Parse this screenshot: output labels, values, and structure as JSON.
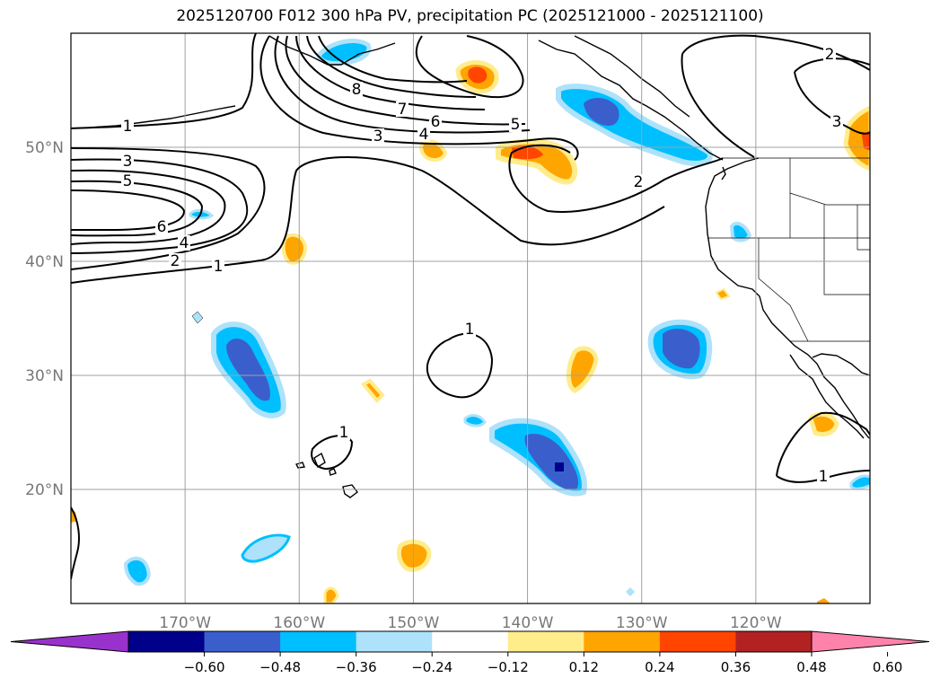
{
  "title": "2025120700 F012 300 hPa PV, precipitation PC (2025121000 - 2025121100)",
  "map": {
    "lon_range": [
      -180,
      -110
    ],
    "lat_range": [
      10,
      60
    ],
    "lon_ticks": [
      {
        "lon": -170,
        "label": "170°W"
      },
      {
        "lon": -160,
        "label": "160°W"
      },
      {
        "lon": -150,
        "label": "150°W"
      },
      {
        "lon": -140,
        "label": "140°W"
      },
      {
        "lon": -130,
        "label": "130°W"
      },
      {
        "lon": -120,
        "label": "120°W"
      }
    ],
    "lat_ticks": [
      {
        "lat": 20,
        "label": "20°N"
      },
      {
        "lat": 30,
        "label": "30°N"
      },
      {
        "lat": 40,
        "label": "40°N"
      },
      {
        "lat": 50,
        "label": "50°N"
      }
    ],
    "gridlines": true,
    "contour_labels": [
      "1",
      "1",
      "1",
      "1",
      "1",
      "2",
      "2",
      "2",
      "3",
      "3",
      "3",
      "4",
      "4",
      "5",
      "5",
      "6",
      "6",
      "7",
      "8"
    ]
  },
  "colorbar": {
    "colors": [
      "#9932CC",
      "#00008B",
      "#3A5FCD",
      "#00BFFF",
      "#ADE2FA",
      "#FFFFFF",
      "#FFEC8B",
      "#FFA500",
      "#FF4500",
      "#B22222",
      "#FF82AB"
    ],
    "ticks": [
      "−0.60",
      "−0.48",
      "−0.36",
      "−0.24",
      "−0.12",
      "0.12",
      "0.24",
      "0.36",
      "0.48",
      "0.60"
    ],
    "extend": "both"
  }
}
